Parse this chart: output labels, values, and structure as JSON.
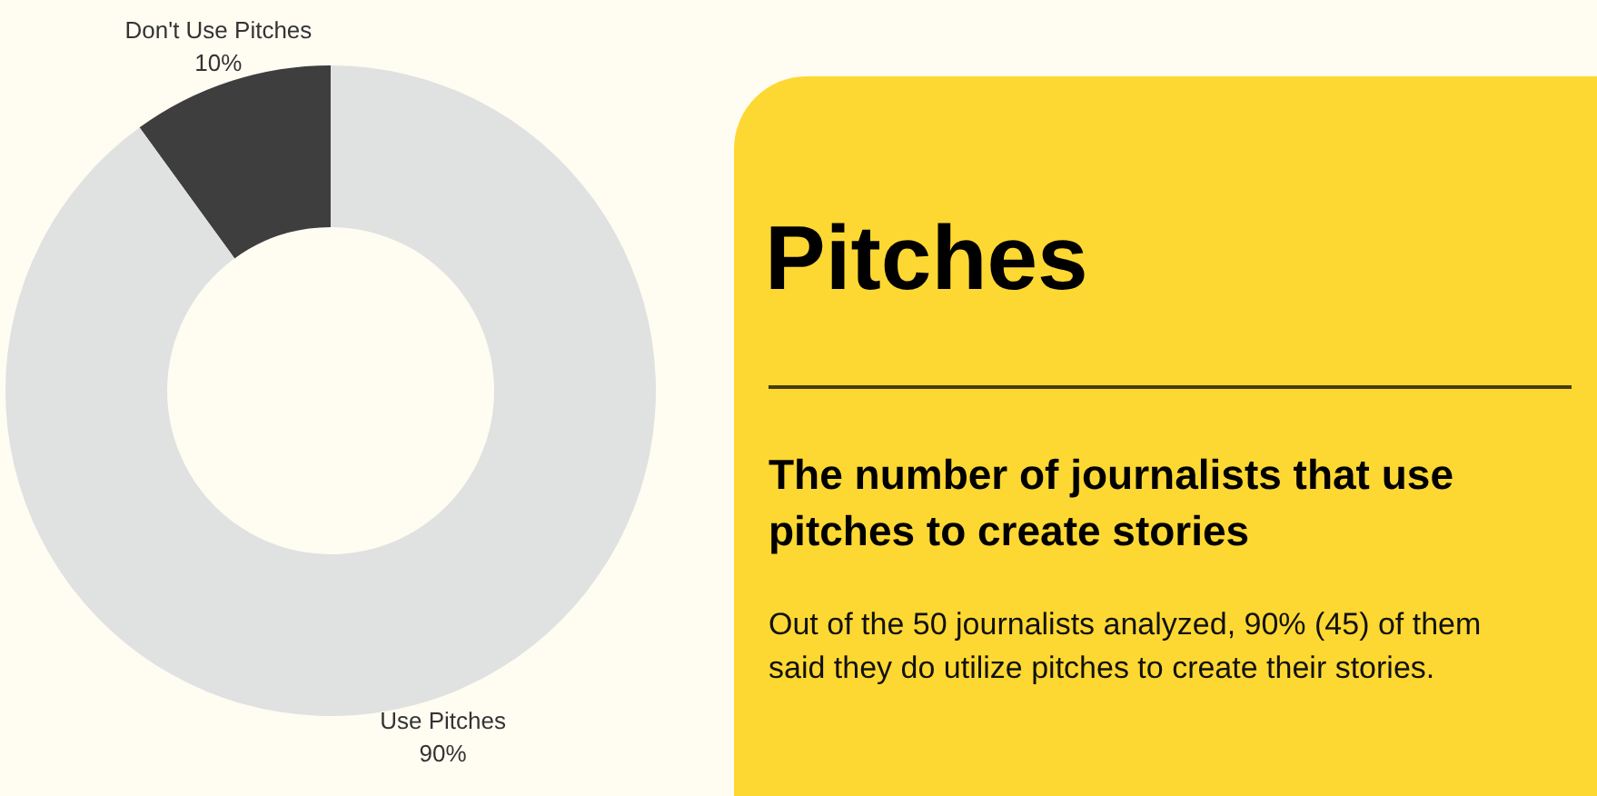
{
  "chart_data": {
    "type": "donut",
    "title": "Pitches",
    "subtitle": "The number of journalists that use pitches to create stories",
    "annotations": [
      "Out of the 50 journalists analyzed, 90% (45) of them said they do utilize pitches to create their stories."
    ],
    "categories": [
      "Don't Use Pitches",
      "Use Pitches"
    ],
    "values": [
      10,
      90
    ],
    "colors": [
      "#3e3e3e",
      "#e0e1e1"
    ],
    "value_labels": [
      "10%",
      "90%"
    ]
  }
}
